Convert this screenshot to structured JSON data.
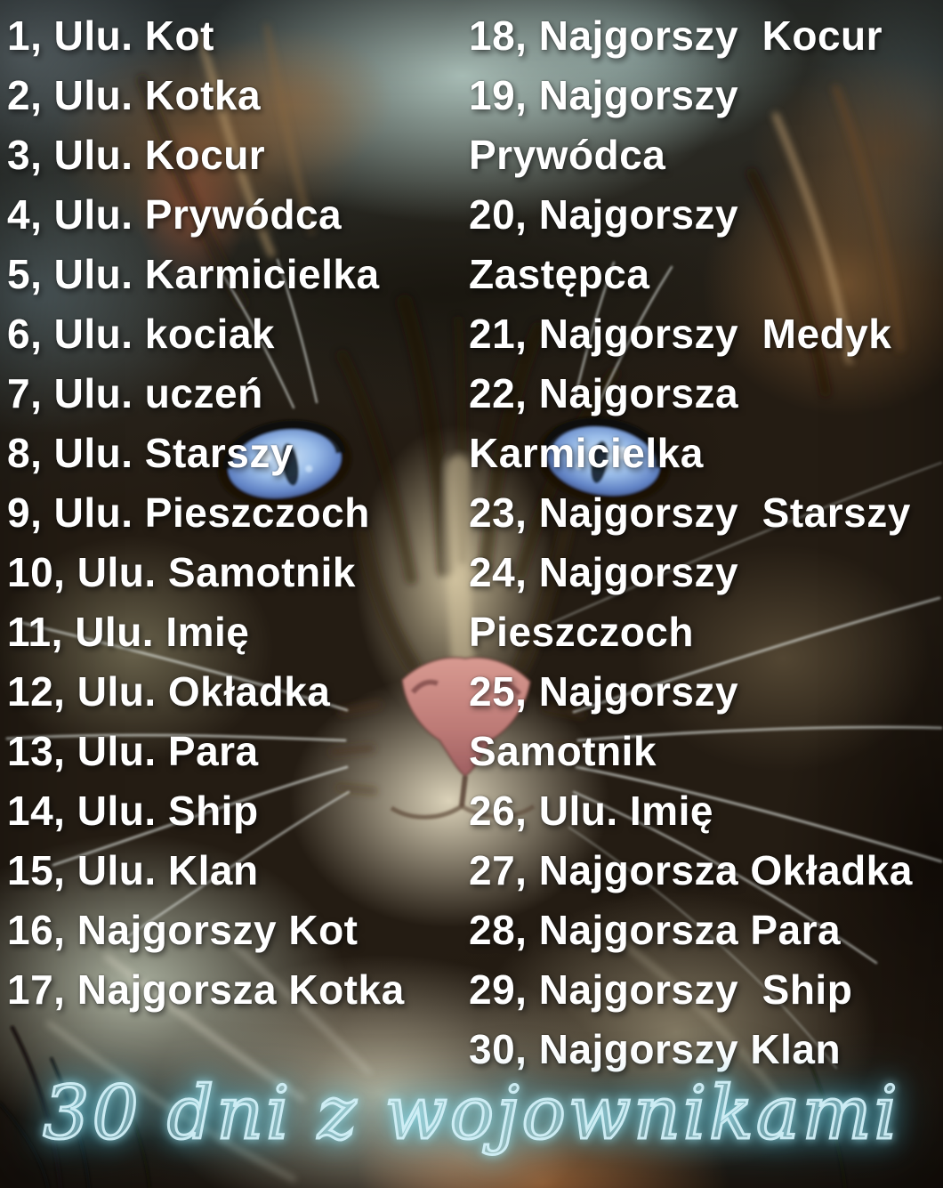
{
  "poster": {
    "title": "30 dni z wojownikami",
    "days": {
      "left_column": [
        "1, Ulu. Kot",
        "2, Ulu. Kotka",
        "3, Ulu. Kocur",
        "4, Ulu. Prywódca",
        "5, Ulu. Karmicielka",
        "6, Ulu. kociak",
        "7, Ulu. uczeń",
        "8, Ulu. Starszy",
        "9, Ulu. Pieszczoch",
        "10, Ulu. Samotnik",
        "11, Ulu. Imię",
        "12, Ulu. Okładka",
        "13, Ulu. Para",
        "14, Ulu. Ship",
        "15, Ulu. Klan",
        "16, Najgorszy Kot",
        "17, Najgorsza Kotka"
      ],
      "right_column": [
        "18, Najgorszy  Kocur",
        "19, Najgorszy\nPrywódca",
        "20, Najgorszy\nZastępca",
        "21, Najgorszy  Medyk",
        "22, Najgorsza\nKarmicielka",
        "23, Najgorszy  Starszy",
        "24, Najgorszy\nPieszczoch",
        "25, Najgorszy\nSamotnik",
        "26, Ulu. Imię",
        "27, Najgorsza Okładka",
        "28, Najgorsza Para",
        "29, Najgorszy  Ship",
        "30, Najgorszy Klan"
      ]
    },
    "colors": {
      "list_text": "#ffffff",
      "title_neon_core": "#d2f0f8",
      "title_neon_glow": "#54c3dc",
      "cat_eye_blue": "#9abde9",
      "cat_nose_pink": "#bd7a76",
      "fur_dark_brown": "#241c13",
      "fur_cream": "#d9d0b2",
      "top_haze_teal": "#b2c8c1",
      "ember_glow": "#c97f45"
    }
  }
}
